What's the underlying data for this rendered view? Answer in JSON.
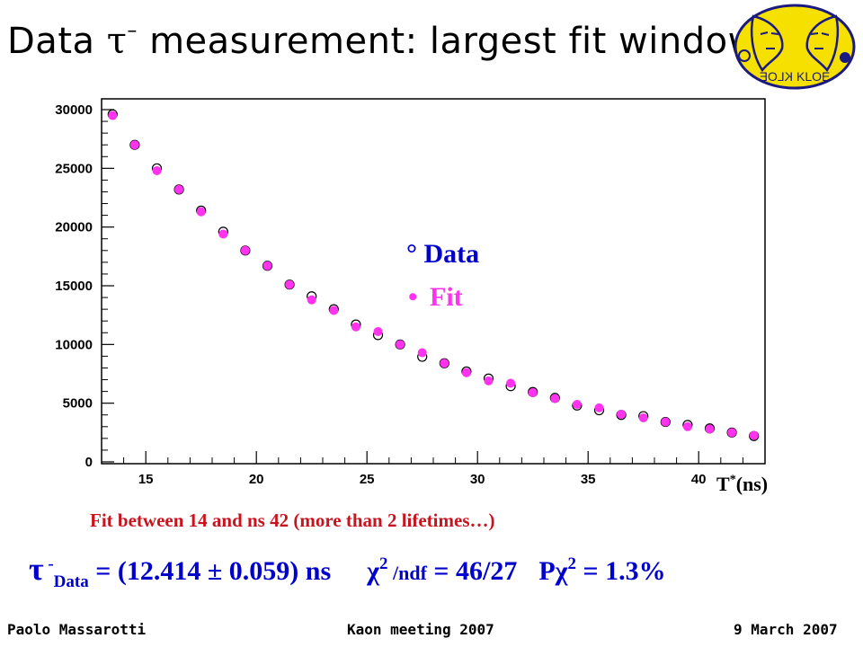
{
  "title": {
    "prefix": "Data ",
    "symbol": "τ",
    "suffix": " measurement: largest fit window"
  },
  "logo": {
    "text": "KLOE",
    "mirror_text": "KLOE"
  },
  "legend": {
    "data_marker": "°",
    "data_label": "Data",
    "fit_marker": "•",
    "fit_label": "Fit"
  },
  "x_axis_title": {
    "main": "T",
    "sup": "*",
    "rest": "(ns)"
  },
  "fit_note": "Fit between 14 and  ns 42 (more than 2 lifetimes…)",
  "result": {
    "tau": "τ",
    "sup_minus": " -",
    "sub_data": "Data",
    "value": " = (12.414 ± 0.059) ns",
    "chi": "χ",
    "chi_sup": "2",
    "ndf_label": " /ndf",
    "ndf_value": " = 46/27",
    "p_label": "Pχ",
    "p_sup": "2",
    "p_value": " = 1.3%"
  },
  "footer": {
    "author": "Paolo Massarotti",
    "meeting": "Kaon  meeting  2007",
    "date": "9 March 2007"
  },
  "colors": {
    "data": "#0000cc",
    "fit": "#ff33ee",
    "fit_note": "#c8141e",
    "result": "#0000cc"
  },
  "chart_data": {
    "type": "scatter",
    "xlim": [
      13,
      43
    ],
    "ylim": [
      0,
      30000
    ],
    "xticks": [
      15,
      20,
      25,
      30,
      35,
      40
    ],
    "yticks": [
      0,
      5000,
      10000,
      15000,
      20000,
      25000,
      30000
    ],
    "xlabel": "T*(ns)",
    "ylabel": "",
    "legend_position": "center",
    "series": [
      {
        "name": "Data",
        "marker": "open-circle",
        "x": [
          13.5,
          14.5,
          15.5,
          16.5,
          17.5,
          18.5,
          19.5,
          20.5,
          21.5,
          22.5,
          23.5,
          24.5,
          25.5,
          26.5,
          27.5,
          28.5,
          29.5,
          30.5,
          31.5,
          32.5,
          33.5,
          34.5,
          35.5,
          36.5,
          37.5,
          38.5,
          39.5,
          40.5,
          41.5,
          42.5
        ],
        "values": [
          29600,
          27000,
          25000,
          23200,
          21400,
          19600,
          18000,
          16700,
          15100,
          14100,
          13000,
          11700,
          10800,
          10000,
          8950,
          8400,
          7700,
          7100,
          6450,
          5950,
          5450,
          4800,
          4400,
          4000,
          3900,
          3400,
          3150,
          2850,
          2500,
          2200
        ]
      },
      {
        "name": "Fit",
        "marker": "filled-circle",
        "x": [
          13.5,
          14.5,
          15.5,
          16.5,
          17.5,
          18.5,
          19.5,
          20.5,
          21.5,
          22.5,
          23.5,
          24.5,
          25.5,
          26.5,
          27.5,
          28.5,
          29.5,
          30.5,
          31.5,
          32.5,
          33.5,
          34.5,
          35.5,
          36.5,
          37.5,
          38.5,
          39.5,
          40.5,
          41.5,
          42.5
        ],
        "values": [
          29500,
          27000,
          24800,
          23200,
          21300,
          19400,
          18000,
          16700,
          15100,
          13800,
          12900,
          11500,
          11100,
          10000,
          9300,
          8400,
          7600,
          6900,
          6700,
          5900,
          5400,
          4900,
          4600,
          4050,
          3750,
          3400,
          3000,
          2800,
          2500,
          2250
        ]
      }
    ]
  }
}
